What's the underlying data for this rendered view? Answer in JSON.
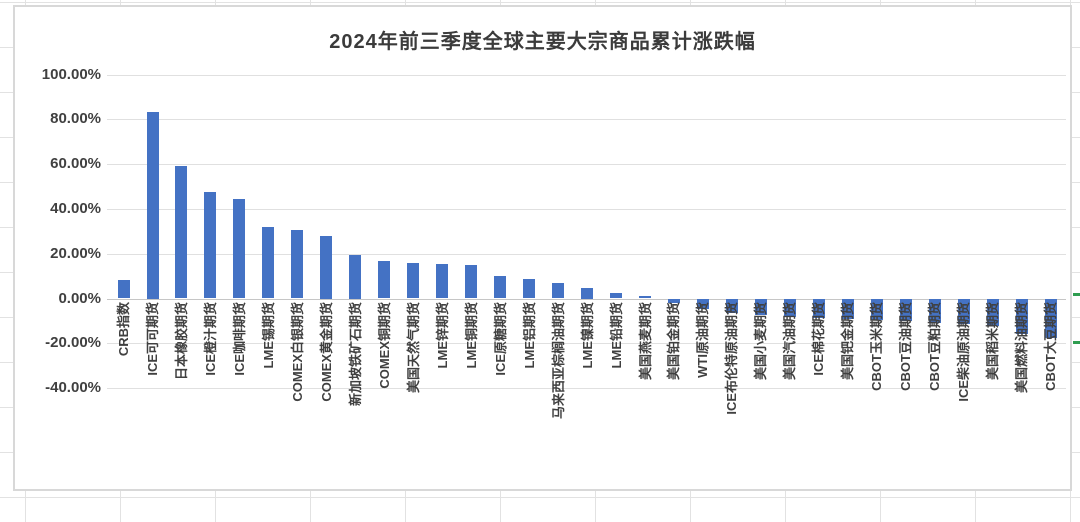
{
  "chart_data": {
    "type": "bar",
    "title": "2024年前三季度全球主要大宗商品累计涨跌幅",
    "xlabel": "",
    "ylabel": "",
    "unit": "%",
    "ylim": [
      -40,
      100
    ],
    "ytick_step": 20,
    "ytick_labels": [
      "100.00%",
      "80.00%",
      "60.00%",
      "40.00%",
      "20.00%",
      "0.00%",
      "-20.00%",
      "-40.00%"
    ],
    "grid": true,
    "legend": false,
    "categories": [
      "CRB指数",
      "ICE可可期货",
      "日本橡胶期货",
      "ICE橙汁期货",
      "ICE咖啡期货",
      "LME锡期货",
      "COMEX白银期货",
      "COMEX黄金期货",
      "新加坡铁矿石期货",
      "COMEX铜期货",
      "美国天然气期货",
      "LME锌期货",
      "LME铜期货",
      "ICE原糖期货",
      "LME铝期货",
      "马来西亚棕榈油期货",
      "LME镍期货",
      "LME铅期货",
      "美国燕麦期货",
      "美国铂金期货",
      "WTI原油期货",
      "ICE布伦特原油期货",
      "美国小麦期货",
      "美国汽油期货",
      "ICE棉花期货",
      "美国钯金期货",
      "CBOT玉米期货",
      "CBOT豆油期货",
      "CBOT豆粕期货",
      "ICE柴油原油期货",
      "美国稻米期货",
      "美国燃料油期货",
      "CBOT大豆期货"
    ],
    "values": [
      8.2,
      83.5,
      59.2,
      47.5,
      44.5,
      32.1,
      30.4,
      27.9,
      19.4,
      16.8,
      15.8,
      15.3,
      15.0,
      10.2,
      8.8,
      7.0,
      4.7,
      2.3,
      1.2,
      -1.8,
      -4.6,
      -6.4,
      -7.5,
      -8.1,
      -8.5,
      -9.0,
      -9.6,
      -10.1,
      -10.8,
      -11.5,
      -12.2,
      -16.0,
      -17.5
    ]
  },
  "colors": {
    "bar": "#4472c4",
    "gridline": "#e0e0e0",
    "axis_line": "#c6c6c6",
    "text": "#404040",
    "selection_mark": "#2e9d50"
  }
}
